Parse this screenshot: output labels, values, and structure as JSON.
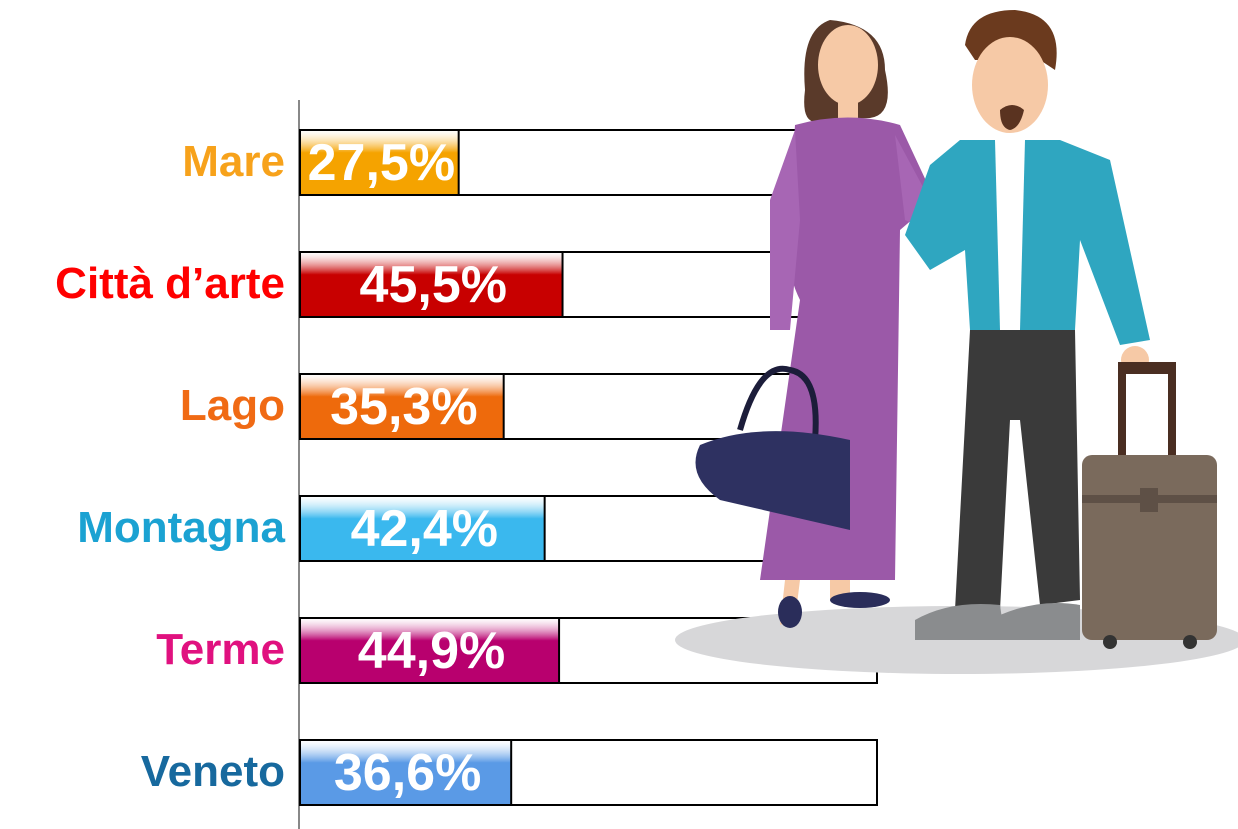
{
  "chart_data": {
    "type": "hbar",
    "categories": [
      "Mare",
      "Città d’arte",
      "Lago",
      "Montagna",
      "Terme",
      "Veneto"
    ],
    "values": [
      27.5,
      45.5,
      35.3,
      42.4,
      44.9,
      36.6
    ],
    "value_labels": [
      "27,5%",
      "45,5%",
      "35,3%",
      "42,4%",
      "44,9%",
      "36,6%"
    ],
    "colors": [
      "#f5a300",
      "#c80000",
      "#ee6a0c",
      "#3ab8ee",
      "#b8006e",
      "#5a9ae6"
    ],
    "label_colors": [
      "#f7a21b",
      "#ff0000",
      "#f06a14",
      "#1ba2d2",
      "#e0117f",
      "#17699e"
    ],
    "xlim": [
      0,
      100
    ]
  }
}
